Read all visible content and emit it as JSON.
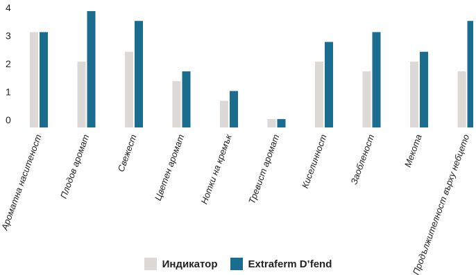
{
  "chart_data": {
    "type": "bar",
    "categories": [
      "Ароматна наситеност",
      "Плодов аромат",
      "Свежест",
      "Цветен аромат",
      "Нотки на кремък",
      "Тревист аромат",
      "Киселинност",
      "Заобленост",
      "Мекота",
      "Продължителност върху небцето"
    ],
    "series": [
      {
        "name": "Индикатор",
        "color": "#dcd9d6",
        "values": [
          3.4,
          2.35,
          2.7,
          1.65,
          0.95,
          0.3,
          2.35,
          2.0,
          2.35,
          2.0
        ]
      },
      {
        "name": "Extraferm D’fend",
        "color": "#1a6d8e",
        "values": [
          3.4,
          4.15,
          3.8,
          2.0,
          1.3,
          0.3,
          3.05,
          3.4,
          2.7,
          3.8
        ]
      }
    ],
    "y_ticks": [
      0,
      1,
      2,
      3,
      4
    ],
    "ylim": [
      0,
      4.2
    ],
    "grid": false,
    "legend_position": "bottom-center"
  }
}
